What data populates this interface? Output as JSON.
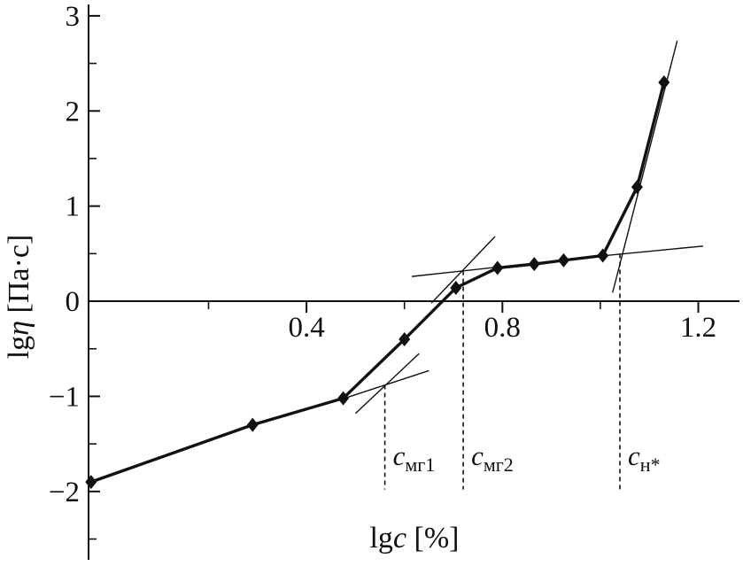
{
  "figure": {
    "background": "#ffffff"
  },
  "chart_data": {
    "type": "line",
    "title": "",
    "xlabel_parts": [
      {
        "text": "lg",
        "italic": false
      },
      {
        "text": "c",
        "italic": true
      },
      {
        "text": " [%]",
        "italic": false
      }
    ],
    "ylabel_parts": [
      {
        "text": "lg",
        "italic": false
      },
      {
        "text": "η",
        "italic": true
      },
      {
        "text": " [Па·с]",
        "italic": false
      }
    ],
    "xlim": [
      -0.045,
      1.275
    ],
    "ylim": [
      -2.7,
      3.12
    ],
    "x_axis_at_y": 0,
    "x_major_ticks": [
      {
        "value": 0.4,
        "label": "0.4"
      },
      {
        "value": 0.8,
        "label": "0.8"
      },
      {
        "value": 1.2,
        "label": "1.2"
      }
    ],
    "x_minor_ticks": [
      0.2,
      0.6,
      1.0
    ],
    "y_major_ticks": [
      {
        "value": -2,
        "label": "−2"
      },
      {
        "value": -1,
        "label": "−1"
      },
      {
        "value": 0,
        "label": "0"
      },
      {
        "value": 1,
        "label": "1"
      },
      {
        "value": 2,
        "label": "2"
      },
      {
        "value": 3,
        "label": "3"
      }
    ],
    "y_minor_ticks": [
      -2.5,
      -1.5,
      -0.5,
      0.5,
      1.5,
      2.5
    ],
    "series": [
      {
        "name": "lg-viscosity-vs-lg-concentration",
        "marker": "diamond",
        "points": [
          [
            -0.04,
            -1.9
          ],
          [
            0.29,
            -1.3
          ],
          [
            0.475,
            -1.02
          ],
          [
            0.6,
            -0.4
          ],
          [
            0.705,
            0.14
          ],
          [
            0.79,
            0.35
          ],
          [
            0.865,
            0.39
          ],
          [
            0.925,
            0.43
          ],
          [
            1.005,
            0.48
          ],
          [
            1.075,
            1.2
          ],
          [
            1.13,
            2.3
          ]
        ]
      }
    ],
    "tangent_lines": [
      {
        "name": "tangent-dilute-extension",
        "p1": [
          0.46,
          -1.05
        ],
        "p2": [
          0.65,
          -0.73
        ]
      },
      {
        "name": "tangent-semidilute-extension",
        "p1": [
          0.5,
          -1.18
        ],
        "p2": [
          0.63,
          -0.55
        ]
      },
      {
        "name": "tangent-plateau-left-extension",
        "p1": [
          0.615,
          0.26
        ],
        "p2": [
          0.9,
          0.42
        ]
      },
      {
        "name": "tangent-rise-extension",
        "p1": [
          0.655,
          -0.02
        ],
        "p2": [
          0.785,
          0.68
        ]
      },
      {
        "name": "tangent-plateau-right-extension",
        "p1": [
          0.93,
          0.44
        ],
        "p2": [
          1.21,
          0.58
        ]
      },
      {
        "name": "tangent-steep-final-extension",
        "p1": [
          1.025,
          0.09
        ],
        "p2": [
          1.157,
          2.74
        ]
      }
    ],
    "critical_concentrations": [
      {
        "x": 0.56,
        "dash_top": -0.88,
        "dash_bottom": -1.98,
        "label_main": "c",
        "label_sub": "мг1"
      },
      {
        "x": 0.72,
        "dash_top": 0.32,
        "dash_bottom": -1.98,
        "label_main": "c",
        "label_sub": "мг2"
      },
      {
        "x": 1.04,
        "dash_top": 0.5,
        "dash_bottom": -1.98,
        "label_main": "c",
        "label_sub": "н*"
      }
    ],
    "colors": {
      "stroke": "#111111",
      "background": "#ffffff"
    }
  }
}
